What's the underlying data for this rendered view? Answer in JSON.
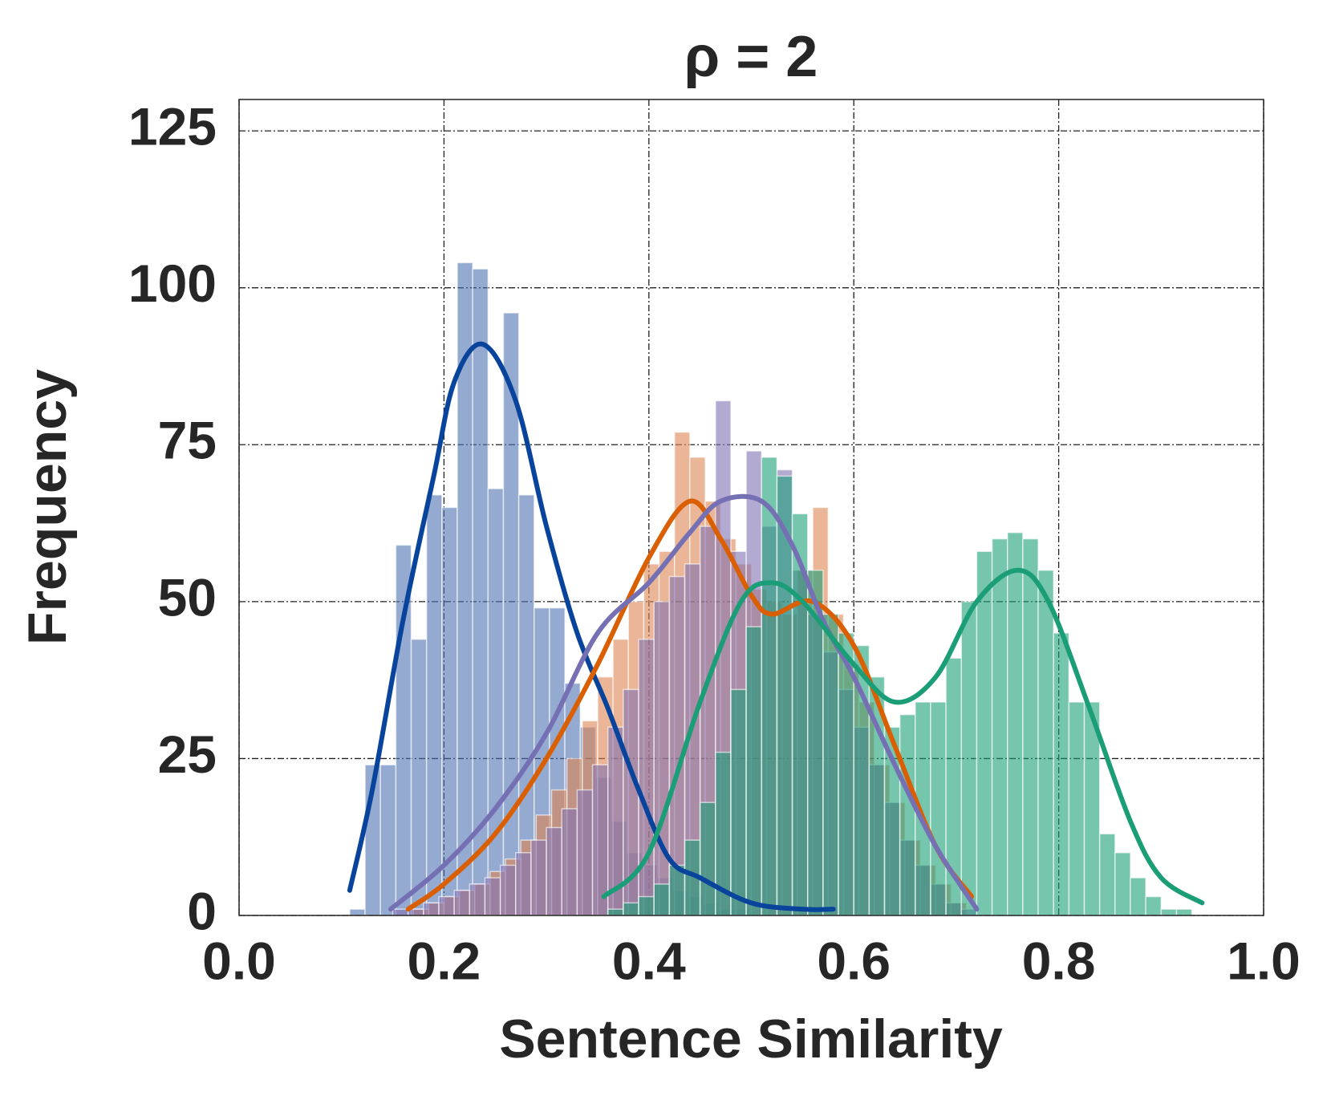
{
  "chart_data": {
    "type": "histogram",
    "title": "ρ = 2",
    "x_label": "Sentence Similarity",
    "y_label": "Frequency",
    "xlim": [
      0,
      1
    ],
    "ylim": [
      0,
      130
    ],
    "xticks": [
      {
        "value": 0,
        "label": "0.0"
      },
      0.2,
      0.4,
      0.6,
      0.8,
      {
        "value": 1,
        "label": "1.0"
      }
    ],
    "yticks": [
      0,
      25,
      50,
      75,
      100,
      125
    ],
    "grid": true,
    "series": [
      {
        "color": "#4c72b0",
        "bins": [
          0.108,
          0.123,
          0.138,
          0.153,
          0.168,
          0.183,
          0.198,
          0.213,
          0.228,
          0.243,
          0.258,
          0.273,
          0.288,
          0.303,
          0.318,
          0.333,
          0.348,
          0.363,
          0.378,
          0.393,
          0.408,
          0.423,
          0.438,
          0.453,
          0.468,
          0.483,
          0.498
        ],
        "values": [
          1,
          24,
          24,
          59,
          44,
          67,
          65,
          104,
          103,
          68,
          96,
          67,
          49,
          49,
          37,
          30,
          22,
          15,
          10,
          8,
          6,
          4,
          3,
          2,
          1,
          1
        ],
        "kde": {
          "color": "#08439c",
          "x": [
            0.108,
            0.13,
            0.16,
            0.19,
            0.21,
            0.238,
            0.27,
            0.3,
            0.33,
            0.36,
            0.39,
            0.42,
            0.45,
            0.5,
            0.55,
            0.58
          ],
          "y": [
            4,
            20,
            47,
            70,
            85,
            91,
            82,
            62,
            45,
            33,
            20,
            9,
            6,
            2,
            1,
            1
          ]
        }
      },
      {
        "color": "#dd8452",
        "bins": [
          0.17,
          0.185,
          0.2,
          0.215,
          0.23,
          0.245,
          0.26,
          0.275,
          0.29,
          0.305,
          0.32,
          0.335,
          0.35,
          0.365,
          0.38,
          0.395,
          0.41,
          0.425,
          0.44,
          0.455,
          0.47,
          0.485,
          0.5,
          0.515,
          0.53,
          0.545,
          0.56,
          0.575,
          0.59,
          0.605,
          0.62,
          0.635,
          0.65,
          0.665,
          0.68,
          0.695,
          0.71
        ],
        "values": [
          1,
          2,
          3,
          4,
          5,
          7,
          9,
          12,
          16,
          20,
          25,
          31,
          38,
          44,
          50,
          56,
          58,
          77,
          73,
          66,
          60,
          56,
          52,
          50,
          48,
          55,
          65,
          48,
          40,
          34,
          24,
          18,
          12,
          8,
          5,
          2
        ],
        "kde": {
          "color": "#d95f02",
          "x": [
            0.165,
            0.2,
            0.25,
            0.3,
            0.35,
            0.4,
            0.44,
            0.47,
            0.5,
            0.52,
            0.56,
            0.6,
            0.64,
            0.68,
            0.715
          ],
          "y": [
            1,
            5,
            13,
            25,
            40,
            57,
            66,
            60,
            51,
            48,
            50,
            43,
            27,
            11,
            3
          ]
        }
      },
      {
        "color": "#8172b3",
        "bins": [
          0.15,
          0.165,
          0.18,
          0.195,
          0.21,
          0.225,
          0.24,
          0.255,
          0.27,
          0.285,
          0.3,
          0.315,
          0.33,
          0.345,
          0.36,
          0.375,
          0.39,
          0.405,
          0.42,
          0.435,
          0.45,
          0.465,
          0.48,
          0.495,
          0.51,
          0.525,
          0.54,
          0.555,
          0.57,
          0.585,
          0.6,
          0.615,
          0.63,
          0.645,
          0.66,
          0.675,
          0.69,
          0.705,
          0.72
        ],
        "values": [
          1,
          1,
          2,
          3,
          4,
          5,
          6,
          8,
          10,
          12,
          14,
          17,
          20,
          24,
          30,
          36,
          44,
          50,
          54,
          56,
          62,
          82,
          58,
          74,
          62,
          71,
          55,
          48,
          42,
          36,
          30,
          24,
          18,
          12,
          8,
          5,
          2,
          1
        ],
        "kde": {
          "color": "#7570b3",
          "x": [
            0.148,
            0.2,
            0.25,
            0.3,
            0.35,
            0.4,
            0.44,
            0.47,
            0.51,
            0.54,
            0.57,
            0.6,
            0.64,
            0.68,
            0.72
          ],
          "y": [
            1,
            8,
            17,
            29,
            45,
            53,
            61,
            66,
            66,
            59,
            47,
            38,
            24,
            11,
            1
          ]
        }
      },
      {
        "color": "#1b9e77",
        "bins": [
          0.36,
          0.375,
          0.39,
          0.405,
          0.42,
          0.435,
          0.45,
          0.465,
          0.48,
          0.495,
          0.51,
          0.525,
          0.54,
          0.555,
          0.57,
          0.585,
          0.6,
          0.615,
          0.63,
          0.645,
          0.66,
          0.675,
          0.69,
          0.705,
          0.72,
          0.735,
          0.75,
          0.765,
          0.78,
          0.795,
          0.81,
          0.825,
          0.84,
          0.855,
          0.87,
          0.885,
          0.9,
          0.915,
          0.93
        ],
        "values": [
          1,
          2,
          3,
          5,
          8,
          12,
          18,
          26,
          36,
          46,
          73,
          70,
          64,
          55,
          48,
          45,
          43,
          38,
          30,
          32,
          34,
          34,
          41,
          50,
          58,
          60,
          61,
          60,
          55,
          45,
          34,
          34,
          13,
          10,
          6,
          3,
          1,
          1
        ],
        "kde": {
          "color": "#1b9e77",
          "x": [
            0.356,
            0.4,
            0.45,
            0.49,
            0.52,
            0.55,
            0.6,
            0.64,
            0.68,
            0.72,
            0.76,
            0.79,
            0.83,
            0.87,
            0.9,
            0.94
          ],
          "y": [
            3,
            10,
            34,
            50,
            53,
            50,
            40,
            34,
            38,
            50,
            55,
            50,
            33,
            15,
            6,
            2
          ]
        }
      }
    ]
  }
}
